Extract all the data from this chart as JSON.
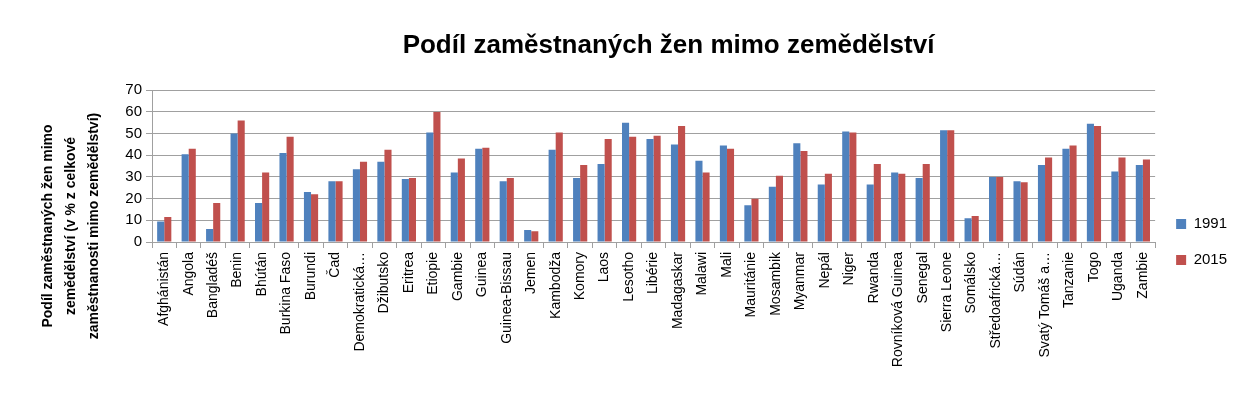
{
  "chart_data": {
    "type": "bar",
    "title": "Podíl zaměstnaných žen mimo zemědělství",
    "ylabel": "Podíl zaměstnaných žen mimo zemědělství (v % z celkové zaměstnanosti mimo zemědělství)",
    "categories": [
      "Afghánistán",
      "Angola",
      "Bangladéš",
      "Benin",
      "Bhútán",
      "Burkina Faso",
      "Burundi",
      "Čad",
      "Demokratická…",
      "Džibutsko",
      "Eritrea",
      "Etiopie",
      "Gambie",
      "Guinea",
      "Guinea-Bissau",
      "Jemen",
      "Kambodža",
      "Komory",
      "Laos",
      "Lesotho",
      "Libérie",
      "Madagaskar",
      "Malawi",
      "Mali",
      "Mauritánie",
      "Mosambik",
      "Myanmar",
      "Nepál",
      "Niger",
      "Rwanda",
      "Rovníková Guinea",
      "Senegal",
      "Sierra Leone",
      "Somálsko",
      "Středoafrická…",
      "Súdán",
      "Svatý Tomáš a…",
      "Tanzanie",
      "Togo",
      "Uganda",
      "Zambie"
    ],
    "series": [
      {
        "name": "1991",
        "color": "#4f81bd",
        "values": [
          9.5,
          40.5,
          6,
          50,
          18,
          41,
          23,
          28,
          33.5,
          37,
          29,
          50.5,
          32,
          43,
          28,
          5.5,
          42.5,
          29.5,
          36,
          55,
          47.5,
          45,
          37.5,
          44.5,
          17,
          25.5,
          45.5,
          26.5,
          51,
          26.5,
          32,
          29.5,
          51.5,
          11,
          30,
          28,
          35.5,
          43,
          54.5,
          32.5,
          35.5
        ]
      },
      {
        "name": "2015",
        "color": "#c0504d",
        "values": [
          11.5,
          43,
          18,
          56,
          32,
          48.5,
          22,
          28,
          37,
          42.5,
          29.5,
          60,
          38.5,
          43.5,
          29.5,
          5,
          50.5,
          35.5,
          47.5,
          48.5,
          49,
          53.5,
          32,
          43,
          20,
          30.5,
          42,
          31.5,
          50.5,
          36,
          31.5,
          36,
          51.5,
          12,
          30,
          27.5,
          39,
          44.5,
          53.5,
          39,
          38
        ]
      }
    ],
    "ylim": [
      0,
      70
    ],
    "yticks": [
      0,
      10,
      20,
      30,
      40,
      50,
      60,
      70
    ],
    "grid": "y",
    "legend": "right"
  }
}
